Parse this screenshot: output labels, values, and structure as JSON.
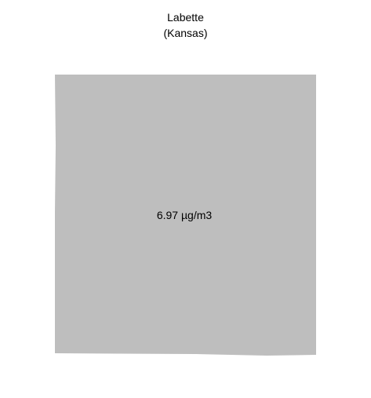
{
  "map": {
    "county_name": "Labette",
    "state_label": "(Kansas)",
    "value_label": "6.97 µg/m3",
    "fill_color": "#bebebe",
    "background_color": "#ffffff"
  }
}
